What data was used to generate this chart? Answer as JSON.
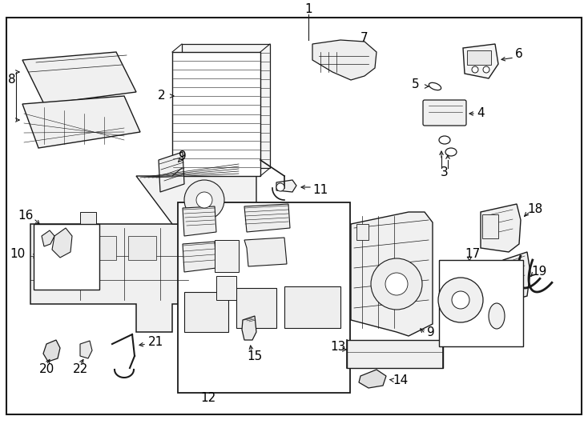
{
  "background_color": "#ffffff",
  "border_color": "#1a1a1a",
  "line_color": "#1a1a1a",
  "label_fontsize": 10,
  "label_fontsize_small": 8,
  "lw_main": 1.0,
  "lw_thin": 0.5,
  "lw_thick": 1.5,
  "fc_part": "#f0f0f0",
  "fc_white": "#ffffff",
  "fc_light": "#e8e8e8"
}
